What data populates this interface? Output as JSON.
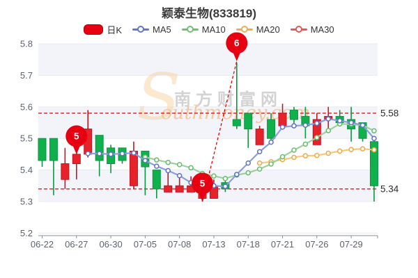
{
  "title": "颖泰生物(833819)",
  "legend": {
    "items": [
      {
        "id": "dayk",
        "label": "日K",
        "swatch": "rect",
        "color": "#e60012",
        "border": "#b50008"
      },
      {
        "id": "ma5",
        "label": "MA5",
        "swatch": "line-dot",
        "color": "#5f77d0"
      },
      {
        "id": "ma10",
        "label": "MA10",
        "swatch": "line-dot",
        "color": "#6fc06f"
      },
      {
        "id": "ma20",
        "label": "MA20",
        "swatch": "line-dot",
        "color": "#f2ae4e"
      },
      {
        "id": "ma30",
        "label": "MA30",
        "swatch": "line-dot",
        "color": "#e85850"
      }
    ]
  },
  "watermark": {
    "swoosh": "S",
    "cjk": "南方财富网",
    "latin": "outhmoney.com"
  },
  "chart_data": {
    "type": "candlestick",
    "title": "颖泰生物(833819)",
    "ylim": [
      5.2,
      5.8
    ],
    "yticks": [
      5.2,
      5.3,
      5.4,
      5.5,
      5.6,
      5.7,
      5.8
    ],
    "x_tick_labels": [
      "06-22",
      "06-27",
      "06-30",
      "07-05",
      "07-08",
      "07-13",
      "07-18",
      "07-21",
      "07-26",
      "07-29"
    ],
    "x_tick_indices": [
      0,
      3,
      6,
      9,
      12,
      15,
      18,
      21,
      24,
      27
    ],
    "up_color": "#e6232b",
    "up_border": "#c51421",
    "down_color": "#10b04d",
    "down_border": "#0d9640",
    "band_color": "#f3f4fa",
    "grid_color": "#e7eaf3",
    "ref_color": "#e60000",
    "marker_color": "#e60012",
    "candles": [
      {
        "date": "06-22",
        "o": 5.5,
        "c": 5.43,
        "h": 5.5,
        "l": 5.41
      },
      {
        "date": "06-23",
        "o": 5.5,
        "c": 5.43,
        "h": 5.5,
        "l": 5.32
      },
      {
        "date": "06-24",
        "o": 5.37,
        "c": 5.42,
        "h": 5.47,
        "l": 5.34
      },
      {
        "date": "06-27",
        "o": 5.42,
        "c": 5.45,
        "h": 5.46,
        "l": 5.37
      },
      {
        "date": "06-28",
        "o": 5.45,
        "c": 5.53,
        "h": 5.59,
        "l": 5.44
      },
      {
        "date": "06-29",
        "o": 5.51,
        "c": 5.43,
        "h": 5.51,
        "l": 5.38
      },
      {
        "date": "06-30",
        "o": 5.47,
        "c": 5.42,
        "h": 5.48,
        "l": 5.39
      },
      {
        "date": "07-01",
        "o": 5.47,
        "c": 5.43,
        "h": 5.47,
        "l": 5.42
      },
      {
        "date": "07-04",
        "o": 5.35,
        "c": 5.46,
        "h": 5.49,
        "l": 5.34
      },
      {
        "date": "07-05",
        "o": 5.46,
        "c": 5.41,
        "h": 5.46,
        "l": 5.32
      },
      {
        "date": "07-06",
        "o": 5.4,
        "c": 5.34,
        "h": 5.4,
        "l": 5.31
      },
      {
        "date": "07-07",
        "o": 5.33,
        "c": 5.35,
        "h": 5.4,
        "l": 5.33
      },
      {
        "date": "07-08",
        "o": 5.33,
        "c": 5.35,
        "h": 5.39,
        "l": 5.33
      },
      {
        "date": "07-11",
        "o": 5.33,
        "c": 5.35,
        "h": 5.38,
        "l": 5.33
      },
      {
        "date": "07-12",
        "o": 5.31,
        "c": 5.35,
        "h": 5.36,
        "l": 5.3
      },
      {
        "date": "07-13",
        "o": 5.31,
        "c": 5.35,
        "h": 5.37,
        "l": 5.31
      },
      {
        "date": "07-14",
        "o": 5.36,
        "c": 5.34,
        "h": 5.37,
        "l": 5.33
      },
      {
        "date": "07-15",
        "o": 5.56,
        "c": 5.54,
        "h": 5.74,
        "l": 5.53
      },
      {
        "date": "07-18",
        "o": 5.58,
        "c": 5.53,
        "h": 5.58,
        "l": 5.47
      },
      {
        "date": "07-19",
        "o": 5.48,
        "c": 5.53,
        "h": 5.54,
        "l": 5.48
      },
      {
        "date": "07-20",
        "o": 5.56,
        "c": 5.5,
        "h": 5.58,
        "l": 5.49
      },
      {
        "date": "07-21",
        "o": 5.54,
        "c": 5.58,
        "h": 5.61,
        "l": 5.54
      },
      {
        "date": "07-22",
        "o": 5.59,
        "c": 5.56,
        "h": 5.6,
        "l": 5.54
      },
      {
        "date": "07-25",
        "o": 5.57,
        "c": 5.54,
        "h": 5.6,
        "l": 5.5
      },
      {
        "date": "07-26",
        "o": 5.48,
        "c": 5.56,
        "h": 5.58,
        "l": 5.48
      },
      {
        "date": "07-27",
        "o": 5.56,
        "c": 5.57,
        "h": 5.6,
        "l": 5.52
      },
      {
        "date": "07-28",
        "o": 5.57,
        "c": 5.55,
        "h": 5.59,
        "l": 5.54
      },
      {
        "date": "07-29",
        "o": 5.56,
        "c": 5.53,
        "h": 5.6,
        "l": 5.49
      },
      {
        "date": "08-01",
        "o": 5.55,
        "c": 5.5,
        "h": 5.55,
        "l": 5.49
      },
      {
        "date": "08-02",
        "o": 5.49,
        "c": 5.35,
        "h": 5.5,
        "l": 5.3
      }
    ],
    "series": [
      {
        "name": "MA5",
        "start_index": 4,
        "line_color": "#8d9cdd",
        "marker_color": "#5a72cc",
        "values": [
          5.452,
          5.452,
          5.45,
          5.452,
          5.454,
          5.43,
          5.412,
          5.398,
          5.382,
          5.36,
          5.348,
          5.35,
          5.348,
          5.386,
          5.422,
          5.458,
          5.488,
          5.536,
          5.54,
          5.542,
          5.548,
          5.562,
          5.556,
          5.55,
          5.542,
          5.5
        ]
      },
      {
        "name": "MA10",
        "start_index": 9,
        "line_color": "#9ed09e",
        "marker_color": "#65bd6a",
        "values": [
          5.441,
          5.432,
          5.424,
          5.417,
          5.407,
          5.389,
          5.381,
          5.373,
          5.384,
          5.391,
          5.403,
          5.419,
          5.442,
          5.463,
          5.482,
          5.503,
          5.525,
          5.546,
          5.545,
          5.542,
          5.524
        ]
      },
      {
        "name": "MA20",
        "start_index": 19,
        "line_color": "#f6c878",
        "marker_color": "#f0a848",
        "values": [
          5.422,
          5.426,
          5.433,
          5.44,
          5.445,
          5.446,
          5.453,
          5.46,
          5.465,
          5.467,
          5.464
        ]
      },
      {
        "name": "MA30",
        "start_index": 30,
        "line_color": "#e85850",
        "marker_color": "#e85850",
        "values": []
      }
    ],
    "ref_lines": [
      {
        "value": 5.58,
        "label": "5.58"
      },
      {
        "value": 5.34,
        "label": "5.34"
      }
    ],
    "markers": [
      {
        "label": "5",
        "index": 3,
        "value": 5.45
      },
      {
        "label": "5",
        "index": 14,
        "value": 5.3
      },
      {
        "label": "6",
        "index": 17,
        "value": 5.745
      }
    ],
    "marker_connector": {
      "from": 1,
      "to": 2
    }
  }
}
